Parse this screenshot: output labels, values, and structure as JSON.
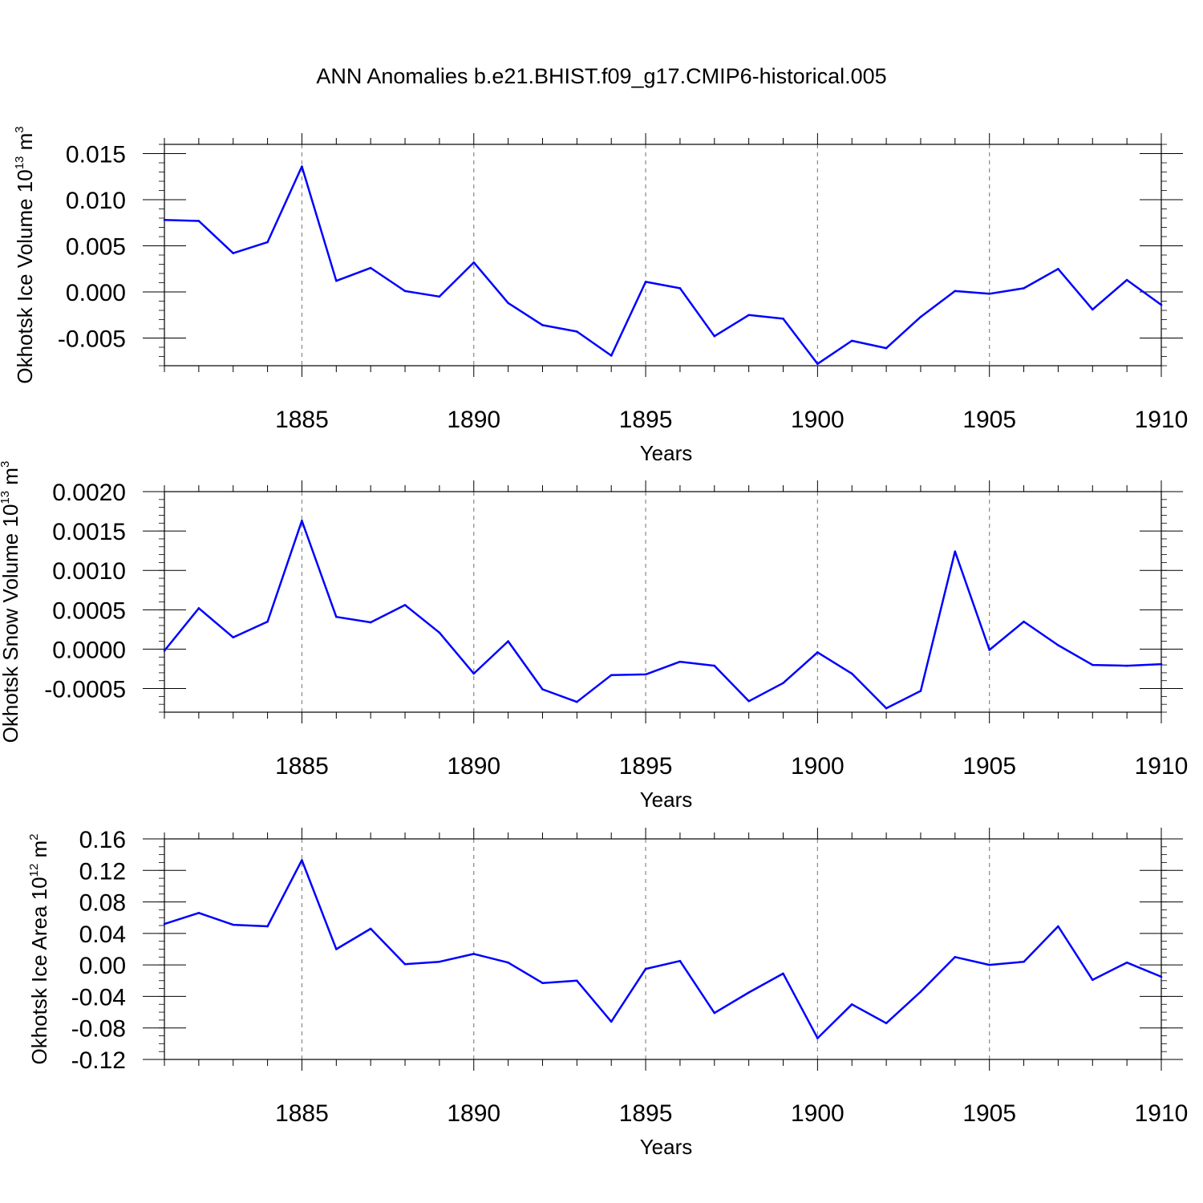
{
  "title": "ANN Anomalies b.e21.BHIST.f09_g17.CMIP6-historical.005",
  "colors": {
    "line": "#0000ff",
    "axis": "#000000",
    "gridline": "#888888"
  },
  "chart_data": [
    {
      "type": "line",
      "ylabel_text": "Okhotsk Ice Volume 10",
      "ylabel_exponent": "13",
      "ylabel_unit": "m",
      "ylabel_unit_power": "3",
      "xlabel": "Years",
      "xlim": [
        1881,
        1910
      ],
      "ylim": [
        -0.008,
        0.016
      ],
      "grid": "dashed vertical lines at labeled years",
      "x_ticks": [
        1885,
        1890,
        1895,
        1900,
        1905,
        1910
      ],
      "y_ticks": [
        -0.005,
        0.0,
        0.005,
        0.01,
        0.015
      ],
      "y_tick_labels": [
        "-0.005",
        "0.000",
        "0.005",
        "0.010",
        "0.015"
      ],
      "y_minor_step": 0.001,
      "x": [
        1881,
        1882,
        1883,
        1884,
        1885,
        1886,
        1887,
        1888,
        1889,
        1890,
        1891,
        1892,
        1893,
        1894,
        1895,
        1896,
        1897,
        1898,
        1899,
        1900,
        1901,
        1902,
        1903,
        1904,
        1905,
        1906,
        1907,
        1908,
        1909,
        1910
      ],
      "series": [
        {
          "values": [
            0.0078,
            0.0077,
            0.0042,
            0.0054,
            0.0136,
            0.0012,
            0.0026,
            0.0001,
            -0.0005,
            0.0032,
            -0.0012,
            -0.0036,
            -0.0043,
            -0.0069,
            0.0011,
            0.0004,
            -0.0048,
            -0.0025,
            -0.0029,
            -0.0078,
            -0.0053,
            -0.0061,
            -0.0027,
            0.0001,
            -0.0002,
            0.0004,
            0.0025,
            -0.0019,
            0.0013,
            -0.0014
          ]
        }
      ]
    },
    {
      "type": "line",
      "ylabel_text": "Okhotsk Snow Volume 10",
      "ylabel_exponent": "13",
      "ylabel_unit": "m",
      "ylabel_unit_power": "3",
      "xlabel": "Years",
      "xlim": [
        1881,
        1910
      ],
      "ylim": [
        -0.0008,
        0.002
      ],
      "grid": "dashed vertical lines at labeled years",
      "x_ticks": [
        1885,
        1890,
        1895,
        1900,
        1905,
        1910
      ],
      "y_ticks": [
        -0.0005,
        0.0,
        0.0005,
        0.001,
        0.0015,
        0.002
      ],
      "y_tick_labels": [
        "-0.0005",
        "0.0000",
        "0.0005",
        "0.0010",
        "0.0015",
        "0.0020"
      ],
      "y_minor_step": 0.0001,
      "x": [
        1881,
        1882,
        1883,
        1884,
        1885,
        1886,
        1887,
        1888,
        1889,
        1890,
        1891,
        1892,
        1893,
        1894,
        1895,
        1896,
        1897,
        1898,
        1899,
        1900,
        1901,
        1902,
        1903,
        1904,
        1905,
        1906,
        1907,
        1908,
        1909,
        1910
      ],
      "series": [
        {
          "values": [
            -2e-05,
            0.00052,
            0.00015,
            0.00035,
            0.00163,
            0.00041,
            0.00034,
            0.00056,
            0.00021,
            -0.00031,
            0.0001,
            -0.00051,
            -0.00067,
            -0.00033,
            -0.00032,
            -0.00016,
            -0.00021,
            -0.00066,
            -0.00043,
            -4e-05,
            -0.00031,
            -0.00075,
            -0.00053,
            0.00124,
            -1e-05,
            0.00035,
            5e-05,
            -0.0002,
            -0.00021,
            -0.00019
          ]
        }
      ]
    },
    {
      "type": "line",
      "ylabel_text": "Okhotsk Ice Area 10",
      "ylabel_exponent": "12",
      "ylabel_unit": "m",
      "ylabel_unit_power": "2",
      "xlabel": "Years",
      "xlim": [
        1881,
        1910
      ],
      "ylim": [
        -0.12,
        0.16
      ],
      "grid": "dashed vertical lines at labeled years",
      "x_ticks": [
        1885,
        1890,
        1895,
        1900,
        1905,
        1910
      ],
      "y_ticks": [
        -0.12,
        -0.08,
        -0.04,
        0.0,
        0.04,
        0.08,
        0.12,
        0.16
      ],
      "y_tick_labels": [
        "-0.12",
        "-0.08",
        "-0.04",
        "0.00",
        "0.04",
        "0.08",
        "0.12",
        "0.16"
      ],
      "y_minor_step": 0.01,
      "x": [
        1881,
        1882,
        1883,
        1884,
        1885,
        1886,
        1887,
        1888,
        1889,
        1890,
        1891,
        1892,
        1893,
        1894,
        1895,
        1896,
        1897,
        1898,
        1899,
        1900,
        1901,
        1902,
        1903,
        1904,
        1905,
        1906,
        1907,
        1908,
        1909,
        1910
      ],
      "series": [
        {
          "values": [
            0.052,
            0.066,
            0.051,
            0.049,
            0.133,
            0.02,
            0.046,
            0.001,
            0.004,
            0.014,
            0.003,
            -0.023,
            -0.02,
            -0.072,
            -0.005,
            0.005,
            -0.061,
            -0.035,
            -0.011,
            -0.093,
            -0.05,
            -0.074,
            -0.034,
            0.01,
            0.0,
            0.004,
            0.049,
            -0.019,
            0.003,
            -0.015
          ]
        }
      ]
    }
  ]
}
